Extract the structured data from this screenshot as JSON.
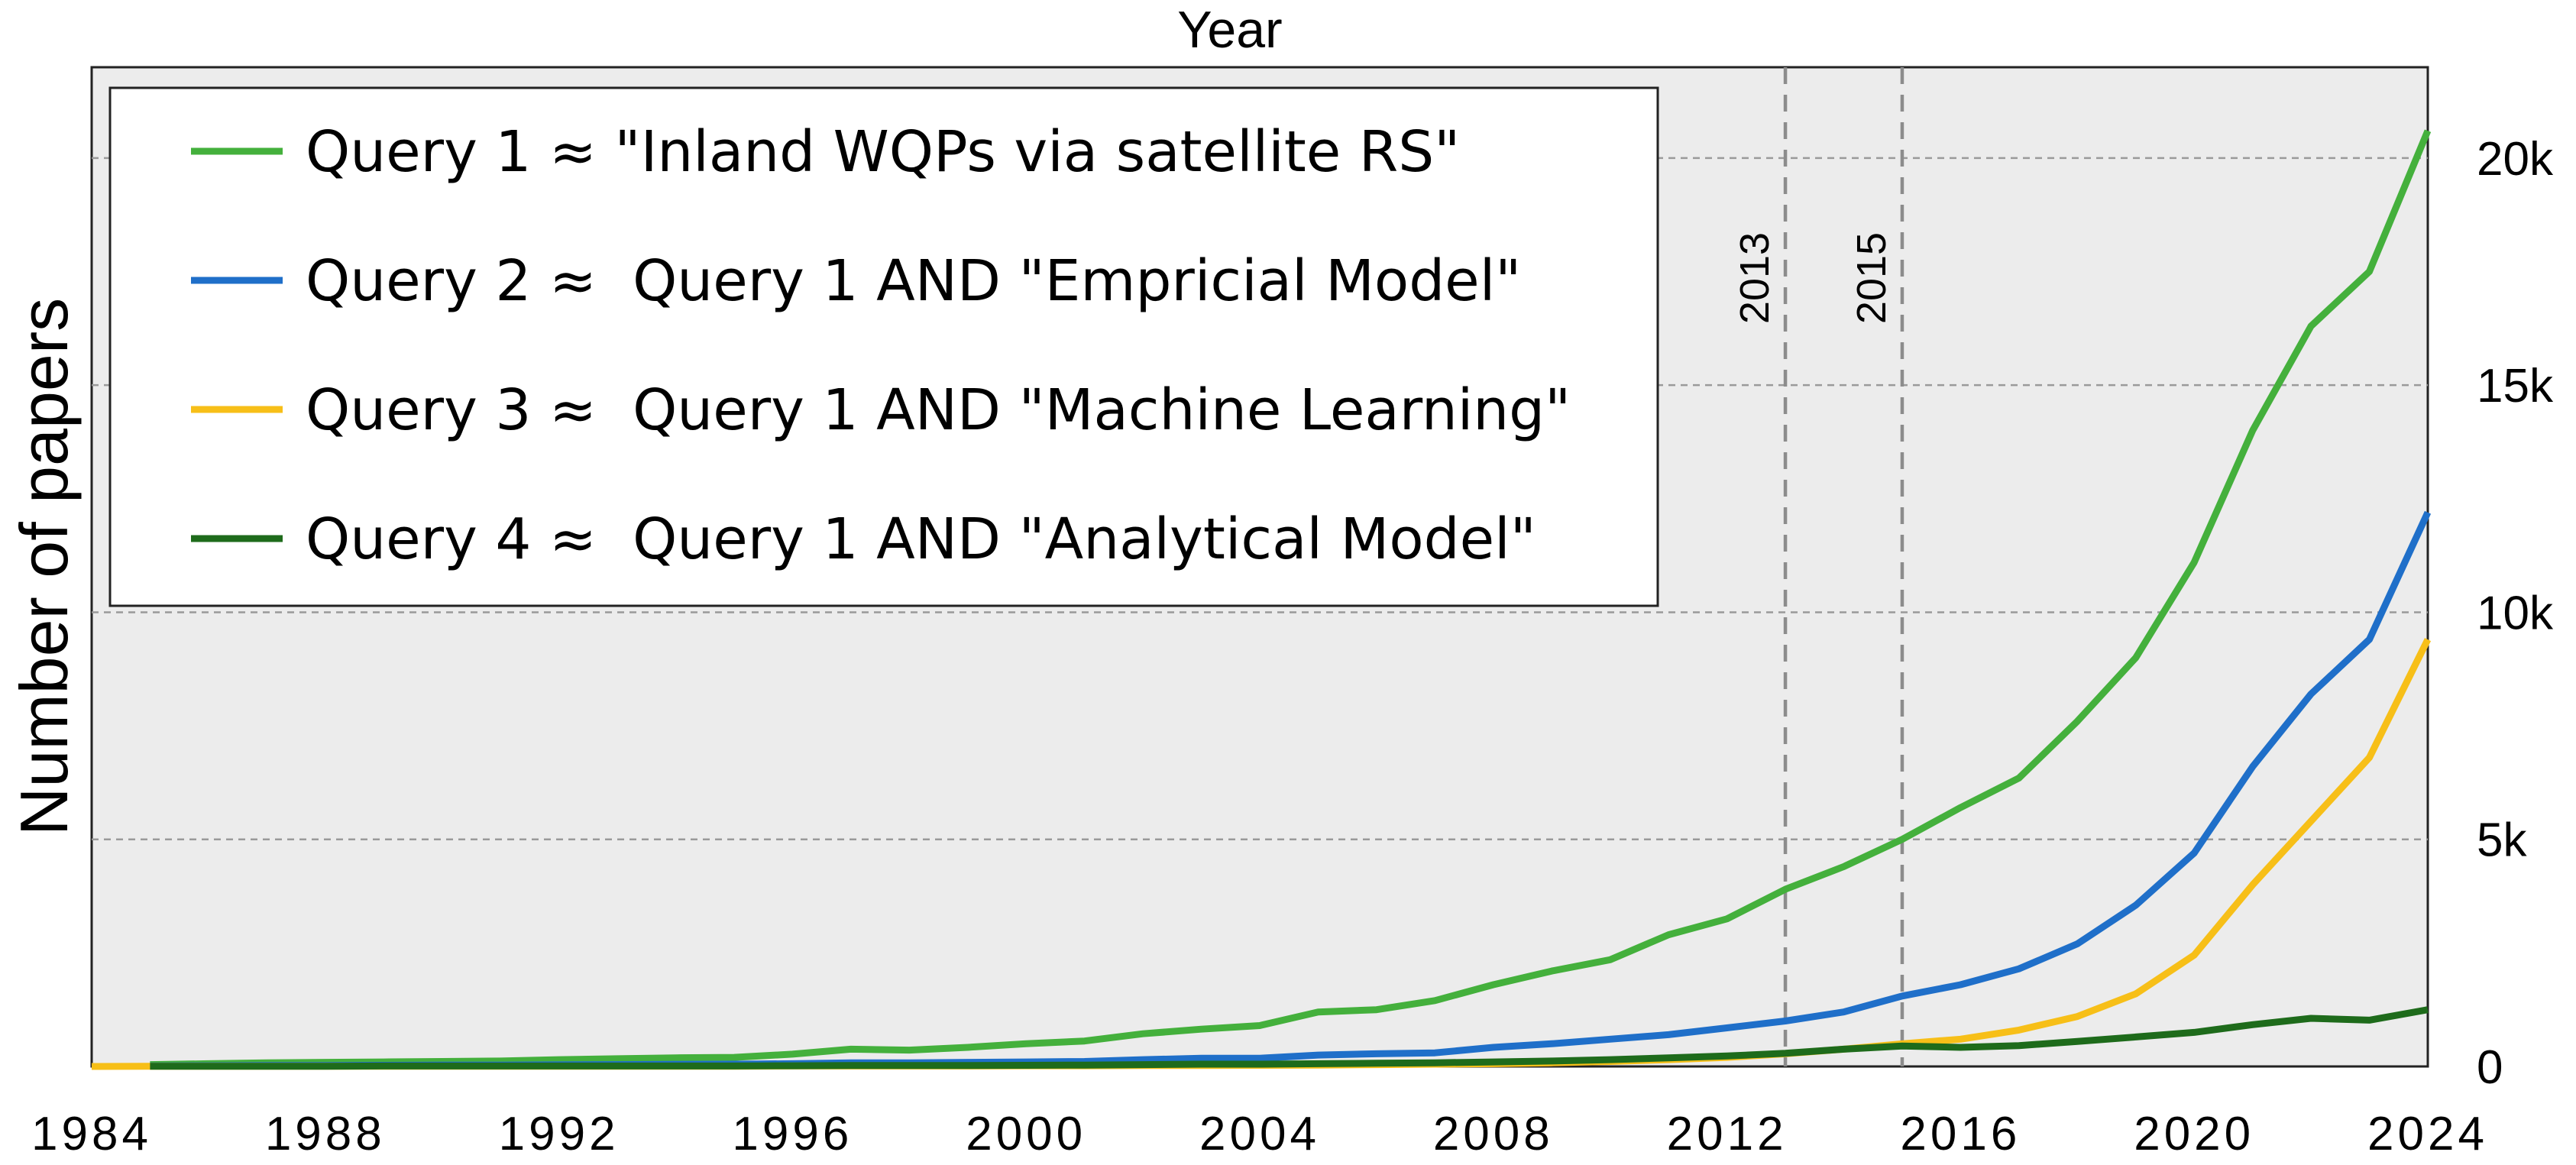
{
  "chart_data": {
    "type": "line",
    "title": "Year",
    "xlabel": "Year",
    "ylabel": "Number of papers",
    "xlim": [
      1984,
      2024
    ],
    "ylim": [
      0,
      22000
    ],
    "x_ticks": [
      1984,
      1988,
      1992,
      1996,
      2000,
      2004,
      2008,
      2012,
      2016,
      2020,
      2024
    ],
    "x_tick_labels": [
      "1984",
      "1988",
      "1992",
      "1996",
      "2000",
      "2004",
      "2008",
      "2012",
      "2016",
      "2020",
      "2024"
    ],
    "y_ticks": [
      0,
      5000,
      10000,
      15000,
      20000
    ],
    "y_tick_labels": [
      "0",
      "5k",
      "10k",
      "15k",
      "20k"
    ],
    "y_axis_side": "right",
    "x_axis_title_position": "top",
    "grid": "horizontal dashed",
    "background": "#ececec",
    "legend_position": "top-left",
    "reference_lines": [
      {
        "x": 2013,
        "label": "2013"
      },
      {
        "x": 2015,
        "label": "2015"
      }
    ],
    "series": [
      {
        "name": "Query 1 ≈ \"Inland WQPs via satellite RS\"",
        "color": "#44b03c",
        "x": [
          1985,
          1986,
          1987,
          1988,
          1989,
          1990,
          1991,
          1992,
          1993,
          1994,
          1995,
          1996,
          1997,
          1998,
          1999,
          2000,
          2001,
          2002,
          2003,
          2004,
          2005,
          2006,
          2007,
          2008,
          2009,
          2010,
          2011,
          2012,
          2013,
          2014,
          2015,
          2016,
          2017,
          2018,
          2019,
          2020,
          2021,
          2022,
          2023,
          2024
        ],
        "values": [
          40,
          60,
          80,
          90,
          100,
          110,
          120,
          150,
          170,
          190,
          200,
          270,
          380,
          360,
          420,
          500,
          560,
          720,
          820,
          900,
          1200,
          1250,
          1450,
          1800,
          2100,
          2350,
          2900,
          3250,
          3900,
          4400,
          5000,
          5700,
          6350,
          7600,
          9000,
          11100,
          14000,
          16300,
          17500,
          20600
        ]
      },
      {
        "name": "Query 2 ≈  Query 1 AND \"Empricial Model\"",
        "color": "#1f6fc9",
        "x": [
          1985,
          1986,
          1987,
          1988,
          1989,
          1990,
          1991,
          1992,
          1993,
          1994,
          1995,
          1996,
          1997,
          1998,
          1999,
          2000,
          2001,
          2002,
          2003,
          2004,
          2005,
          2006,
          2007,
          2008,
          2009,
          2010,
          2011,
          2012,
          2013,
          2014,
          2015,
          2016,
          2017,
          2018,
          2019,
          2020,
          2021,
          2022,
          2023,
          2024
        ],
        "values": [
          10,
          15,
          20,
          20,
          25,
          30,
          30,
          35,
          40,
          45,
          50,
          60,
          80,
          80,
          90,
          100,
          110,
          150,
          180,
          180,
          250,
          280,
          300,
          420,
          500,
          600,
          700,
          850,
          1000,
          1200,
          1550,
          1800,
          2150,
          2700,
          3550,
          4700,
          6600,
          8200,
          9400,
          12200
        ]
      },
      {
        "name": "Query 3 ≈  Query 1 AND \"Machine Learning\"",
        "color": "#f7bf18",
        "x": [
          1984,
          1985,
          1986,
          1987,
          1988,
          1989,
          1990,
          1991,
          1992,
          1993,
          1994,
          1995,
          1996,
          1997,
          1998,
          1999,
          2000,
          2001,
          2002,
          2003,
          2004,
          2005,
          2006,
          2007,
          2008,
          2009,
          2010,
          2011,
          2012,
          2013,
          2014,
          2015,
          2016,
          2017,
          2018,
          2019,
          2020,
          2021,
          2022,
          2023,
          2024
        ],
        "values": [
          0,
          5,
          5,
          5,
          5,
          5,
          5,
          5,
          5,
          5,
          5,
          5,
          10,
          10,
          10,
          10,
          15,
          15,
          20,
          20,
          25,
          30,
          40,
          50,
          60,
          80,
          110,
          150,
          200,
          280,
          380,
          500,
          600,
          800,
          1100,
          1600,
          2450,
          4000,
          5400,
          6800,
          9400
        ]
      },
      {
        "name": "Query 4 ≈  Query 1 AND \"Analytical Model\"",
        "color": "#1e6b1b",
        "x": [
          1985,
          1986,
          1987,
          1988,
          1989,
          1990,
          1991,
          1992,
          1993,
          1994,
          1995,
          1996,
          1997,
          1998,
          1999,
          2000,
          2001,
          2002,
          2003,
          2004,
          2005,
          2006,
          2007,
          2008,
          2009,
          2010,
          2011,
          2012,
          2013,
          2014,
          2015,
          2016,
          2017,
          2018,
          2019,
          2020,
          2021,
          2022,
          2023,
          2024
        ],
        "values": [
          5,
          5,
          5,
          5,
          10,
          10,
          10,
          10,
          10,
          10,
          10,
          15,
          20,
          20,
          20,
          25,
          30,
          40,
          50,
          50,
          60,
          70,
          80,
          100,
          120,
          150,
          190,
          230,
          290,
          380,
          450,
          420,
          460,
          550,
          650,
          750,
          920,
          1060,
          1020,
          1250
        ]
      }
    ]
  }
}
